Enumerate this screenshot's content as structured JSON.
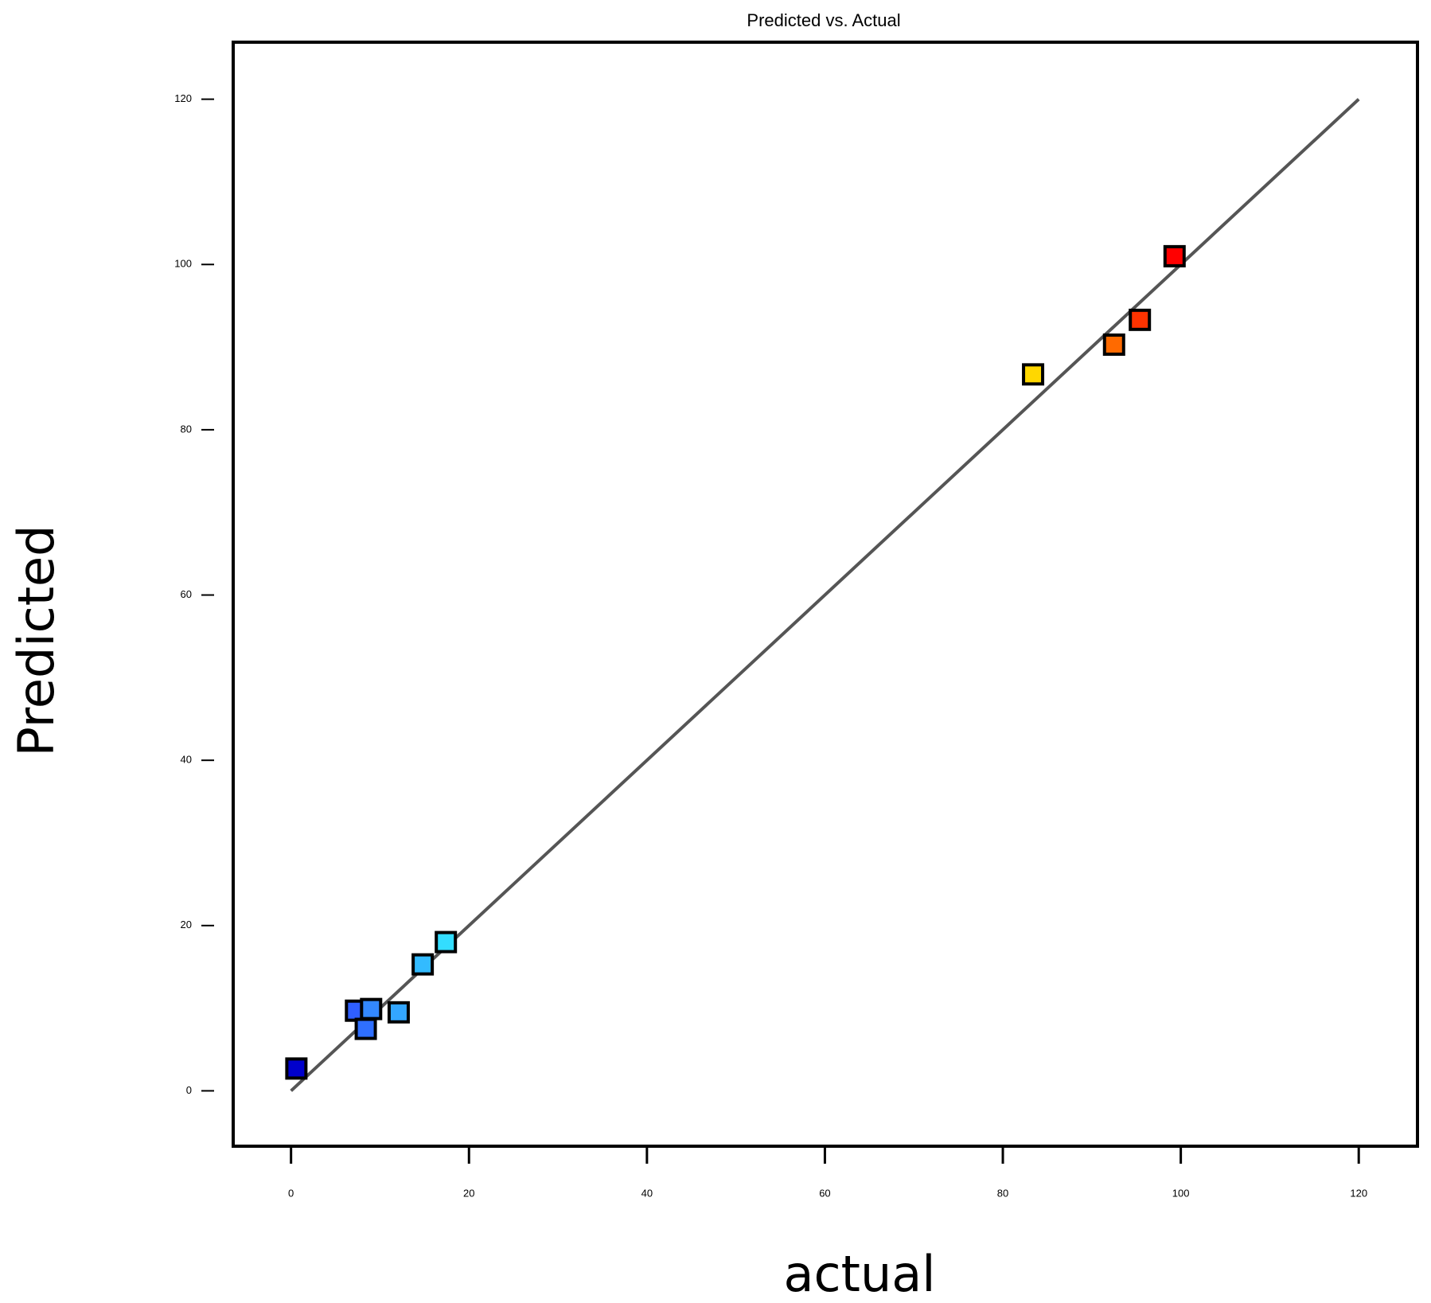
{
  "chart_data": {
    "type": "scatter",
    "title": "Predicted vs. Actual",
    "x_label": "actual",
    "y_label": "Predicted",
    "x": [
      0.6,
      7.3,
      8.4,
      9.0,
      12.1,
      14.8,
      17.4,
      83.4,
      92.5,
      95.4,
      99.3
    ],
    "values": [
      2.7,
      9.7,
      7.5,
      9.9,
      9.5,
      15.3,
      18.0,
      86.7,
      90.3,
      93.3,
      101.0
    ],
    "colors": [
      "#0000cc",
      "#2f5fff",
      "#2f6fff",
      "#3388ff",
      "#33a6ff",
      "#33bbff",
      "#33ddff",
      "#ffd700",
      "#ff6a00",
      "#ff3300",
      "#ff0000"
    ],
    "diagonal": [
      0,
      120
    ],
    "xlim": [
      -6.5,
      126.6
    ],
    "ylim": [
      -6.7,
      126.9
    ],
    "xticks": [
      0,
      20,
      40,
      60,
      80,
      100,
      120
    ],
    "yticks": [
      0,
      20,
      40,
      60,
      80,
      100,
      120
    ]
  }
}
